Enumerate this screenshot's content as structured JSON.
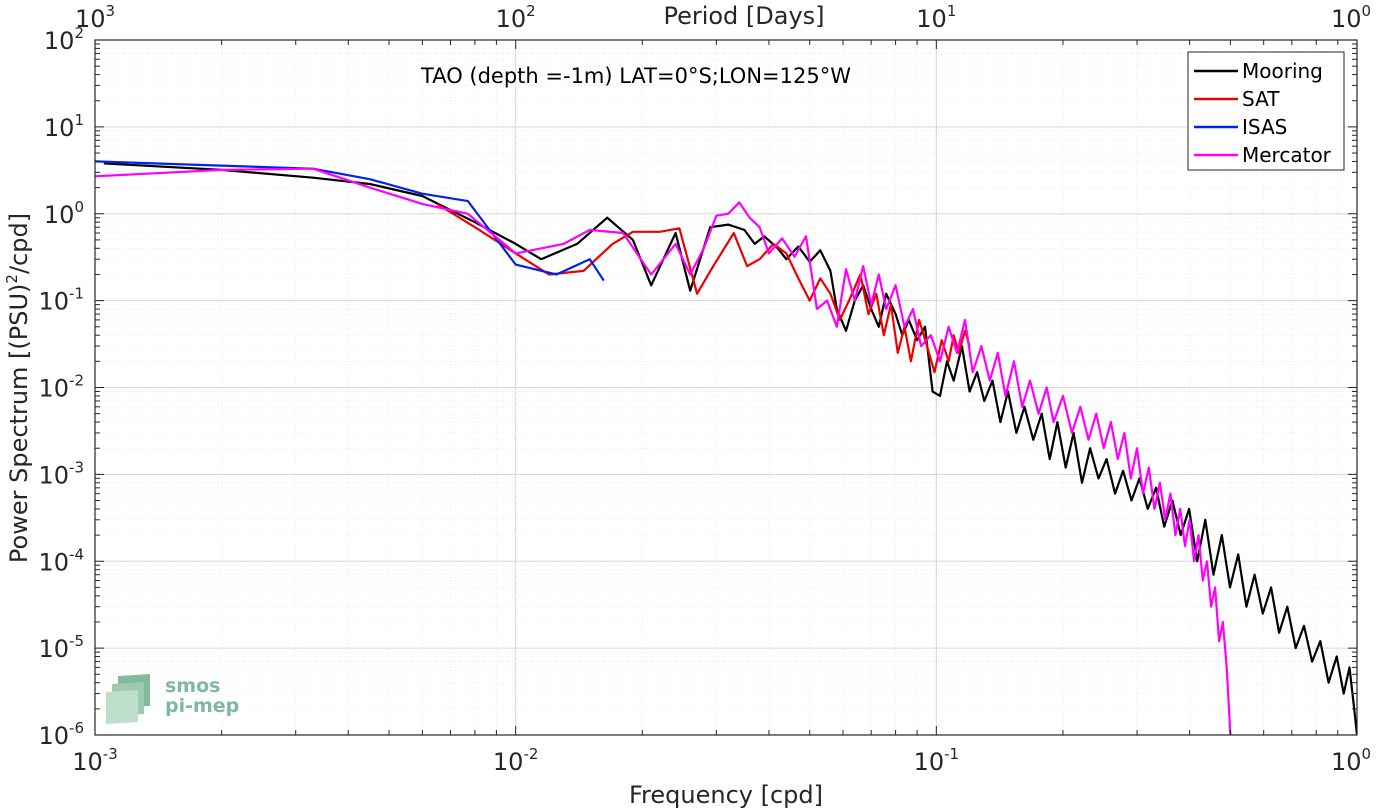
{
  "chart_data": {
    "type": "line",
    "title": "TAO (depth =-1m) LAT=0°S;LON=125°W",
    "xlabel": "Frequency [cpd]",
    "ylabel": "Power Spectrum [(PSU)²/cpd]",
    "ylabel_parts": {
      "main": "Power Spectrum [(PSU)",
      "sup": "2",
      "tail": "/cpd]"
    },
    "top_xlabel": "Period [Days]",
    "xscale": "log",
    "yscale": "log",
    "xlim": [
      0.001,
      1
    ],
    "ylim": [
      1e-06,
      100
    ],
    "grid": true,
    "legend_position": "top-right",
    "x_ticks": [
      {
        "value": 0.001,
        "base": "10",
        "exp": "-3"
      },
      {
        "value": 0.01,
        "base": "10",
        "exp": "-2"
      },
      {
        "value": 0.1,
        "base": "10",
        "exp": "-1"
      },
      {
        "value": 1,
        "base": "10",
        "exp": "0"
      }
    ],
    "top_ticks": [
      {
        "value": 0.001,
        "base": "10",
        "exp": "3"
      },
      {
        "value": 0.01,
        "base": "10",
        "exp": "2"
      },
      {
        "value": 0.1,
        "base": "10",
        "exp": "1"
      },
      {
        "value": 1,
        "base": "10",
        "exp": "0"
      }
    ],
    "y_ticks": [
      {
        "value": 100,
        "base": "10",
        "exp": "2"
      },
      {
        "value": 10,
        "base": "10",
        "exp": "1"
      },
      {
        "value": 1,
        "base": "10",
        "exp": "0"
      },
      {
        "value": 0.1,
        "base": "10",
        "exp": "-1"
      },
      {
        "value": 0.01,
        "base": "10",
        "exp": "-2"
      },
      {
        "value": 0.001,
        "base": "10",
        "exp": "-3"
      },
      {
        "value": 0.0001,
        "base": "10",
        "exp": "-4"
      },
      {
        "value": 1e-05,
        "base": "10",
        "exp": "-5"
      },
      {
        "value": 1e-06,
        "base": "10",
        "exp": "-6"
      }
    ],
    "series": [
      {
        "name": "Mooring",
        "color": "#000000",
        "points": [
          [
            0.00105,
            3.8
          ],
          [
            0.002,
            3.2
          ],
          [
            0.0033,
            2.6
          ],
          [
            0.0045,
            2.2
          ],
          [
            0.006,
            1.6
          ],
          [
            0.008,
            0.8
          ],
          [
            0.01,
            0.45
          ],
          [
            0.0115,
            0.3
          ],
          [
            0.014,
            0.45
          ],
          [
            0.0165,
            0.9
          ],
          [
            0.019,
            0.5
          ],
          [
            0.021,
            0.15
          ],
          [
            0.024,
            0.6
          ],
          [
            0.026,
            0.13
          ],
          [
            0.029,
            0.7
          ],
          [
            0.032,
            0.75
          ],
          [
            0.035,
            0.65
          ],
          [
            0.037,
            0.45
          ],
          [
            0.039,
            0.55
          ],
          [
            0.042,
            0.4
          ],
          [
            0.044,
            0.3
          ],
          [
            0.047,
            0.42
          ],
          [
            0.05,
            0.28
          ],
          [
            0.053,
            0.38
          ],
          [
            0.056,
            0.22
          ],
          [
            0.058,
            0.08
          ],
          [
            0.061,
            0.045
          ],
          [
            0.064,
            0.1
          ],
          [
            0.067,
            0.15
          ],
          [
            0.07,
            0.08
          ],
          [
            0.073,
            0.05
          ],
          [
            0.076,
            0.12
          ],
          [
            0.08,
            0.07
          ],
          [
            0.083,
            0.04
          ],
          [
            0.086,
            0.06
          ],
          [
            0.09,
            0.035
          ],
          [
            0.094,
            0.05
          ],
          [
            0.098,
            0.009
          ],
          [
            0.102,
            0.008
          ],
          [
            0.106,
            0.02
          ],
          [
            0.11,
            0.012
          ],
          [
            0.115,
            0.03
          ],
          [
            0.12,
            0.009
          ],
          [
            0.125,
            0.015
          ],
          [
            0.13,
            0.007
          ],
          [
            0.136,
            0.012
          ],
          [
            0.142,
            0.004
          ],
          [
            0.148,
            0.009
          ],
          [
            0.155,
            0.003
          ],
          [
            0.162,
            0.006
          ],
          [
            0.17,
            0.0025
          ],
          [
            0.178,
            0.005
          ],
          [
            0.186,
            0.0015
          ],
          [
            0.194,
            0.004
          ],
          [
            0.203,
            0.0012
          ],
          [
            0.212,
            0.003
          ],
          [
            0.222,
            0.0008
          ],
          [
            0.232,
            0.002
          ],
          [
            0.243,
            0.0009
          ],
          [
            0.254,
            0.0015
          ],
          [
            0.266,
            0.0006
          ],
          [
            0.278,
            0.0011
          ],
          [
            0.291,
            0.0005
          ],
          [
            0.304,
            0.0009
          ],
          [
            0.318,
            0.0004
          ],
          [
            0.333,
            0.0007
          ],
          [
            0.348,
            0.00025
          ],
          [
            0.364,
            0.0005
          ],
          [
            0.381,
            0.0002
          ],
          [
            0.399,
            0.0004
          ],
          [
            0.417,
            0.0001
          ],
          [
            0.436,
            0.0003
          ],
          [
            0.456,
            7e-05
          ],
          [
            0.477,
            0.0002
          ],
          [
            0.499,
            5e-05
          ],
          [
            0.522,
            0.00012
          ],
          [
            0.546,
            3e-05
          ],
          [
            0.571,
            7e-05
          ],
          [
            0.597,
            2.5e-05
          ],
          [
            0.625,
            5e-05
          ],
          [
            0.653,
            1.5e-05
          ],
          [
            0.683,
            3e-05
          ],
          [
            0.715,
            1e-05
          ],
          [
            0.748,
            1.8e-05
          ],
          [
            0.782,
            7e-06
          ],
          [
            0.818,
            1.2e-05
          ],
          [
            0.856,
            4e-06
          ],
          [
            0.895,
            8e-06
          ],
          [
            0.93,
            3e-06
          ],
          [
            0.96,
            6e-06
          ],
          [
            0.985,
            2e-06
          ],
          [
            1.0,
            1e-06
          ]
        ]
      },
      {
        "name": "SAT",
        "color": "#ee0000",
        "points": [
          [
            0.0065,
            1.3
          ],
          [
            0.008,
            0.7
          ],
          [
            0.01,
            0.35
          ],
          [
            0.012,
            0.2
          ],
          [
            0.0145,
            0.22
          ],
          [
            0.017,
            0.45
          ],
          [
            0.019,
            0.62
          ],
          [
            0.022,
            0.62
          ],
          [
            0.0245,
            0.68
          ],
          [
            0.027,
            0.12
          ],
          [
            0.0295,
            0.25
          ],
          [
            0.033,
            0.6
          ],
          [
            0.0355,
            0.25
          ],
          [
            0.038,
            0.3
          ],
          [
            0.041,
            0.45
          ],
          [
            0.044,
            0.35
          ],
          [
            0.047,
            0.18
          ],
          [
            0.05,
            0.1
          ],
          [
            0.053,
            0.18
          ],
          [
            0.056,
            0.12
          ],
          [
            0.059,
            0.06
          ],
          [
            0.062,
            0.1
          ],
          [
            0.066,
            0.2
          ],
          [
            0.069,
            0.07
          ],
          [
            0.072,
            0.12
          ],
          [
            0.075,
            0.04
          ],
          [
            0.078,
            0.09
          ],
          [
            0.081,
            0.025
          ],
          [
            0.084,
            0.05
          ],
          [
            0.087,
            0.02
          ],
          [
            0.091,
            0.06
          ],
          [
            0.095,
            0.03
          ],
          [
            0.099,
            0.015
          ],
          [
            0.103,
            0.035
          ],
          [
            0.107,
            0.02
          ],
          [
            0.11,
            0.04
          ],
          [
            0.113,
            0.025
          ],
          [
            0.117,
            0.045
          ],
          [
            0.12,
            0.03
          ]
        ]
      },
      {
        "name": "ISAS",
        "color": "#0022ee",
        "points": [
          [
            0.001,
            4.0
          ],
          [
            0.0033,
            3.3
          ],
          [
            0.0045,
            2.5
          ],
          [
            0.006,
            1.7
          ],
          [
            0.0077,
            1.4
          ],
          [
            0.01,
            0.26
          ],
          [
            0.0125,
            0.2
          ],
          [
            0.015,
            0.3
          ],
          [
            0.0162,
            0.17
          ]
        ]
      },
      {
        "name": "Mercator",
        "color": "#ff00ff",
        "points": [
          [
            0.001,
            2.7
          ],
          [
            0.002,
            3.2
          ],
          [
            0.0033,
            3.3
          ],
          [
            0.0045,
            2.0
          ],
          [
            0.006,
            1.3
          ],
          [
            0.0077,
            1.0
          ],
          [
            0.01,
            0.35
          ],
          [
            0.013,
            0.45
          ],
          [
            0.015,
            0.65
          ],
          [
            0.018,
            0.6
          ],
          [
            0.021,
            0.2
          ],
          [
            0.024,
            0.45
          ],
          [
            0.026,
            0.2
          ],
          [
            0.028,
            0.4
          ],
          [
            0.03,
            0.95
          ],
          [
            0.032,
            1.0
          ],
          [
            0.034,
            1.35
          ],
          [
            0.036,
            0.9
          ],
          [
            0.038,
            0.7
          ],
          [
            0.04,
            0.35
          ],
          [
            0.043,
            0.52
          ],
          [
            0.046,
            0.32
          ],
          [
            0.049,
            0.55
          ],
          [
            0.052,
            0.08
          ],
          [
            0.055,
            0.1
          ],
          [
            0.058,
            0.05
          ],
          [
            0.061,
            0.23
          ],
          [
            0.064,
            0.1
          ],
          [
            0.067,
            0.25
          ],
          [
            0.07,
            0.09
          ],
          [
            0.073,
            0.2
          ],
          [
            0.076,
            0.08
          ],
          [
            0.08,
            0.15
          ],
          [
            0.084,
            0.05
          ],
          [
            0.088,
            0.08
          ],
          [
            0.092,
            0.03
          ],
          [
            0.097,
            0.04
          ],
          [
            0.102,
            0.02
          ],
          [
            0.107,
            0.05
          ],
          [
            0.112,
            0.025
          ],
          [
            0.117,
            0.06
          ],
          [
            0.122,
            0.015
          ],
          [
            0.128,
            0.03
          ],
          [
            0.134,
            0.012
          ],
          [
            0.14,
            0.025
          ],
          [
            0.146,
            0.008
          ],
          [
            0.153,
            0.02
          ],
          [
            0.16,
            0.006
          ],
          [
            0.167,
            0.012
          ],
          [
            0.175,
            0.005
          ],
          [
            0.183,
            0.01
          ],
          [
            0.19,
            0.004
          ],
          [
            0.2,
            0.008
          ],
          [
            0.21,
            0.003
          ],
          [
            0.22,
            0.006
          ],
          [
            0.23,
            0.0025
          ],
          [
            0.24,
            0.005
          ],
          [
            0.25,
            0.002
          ],
          [
            0.26,
            0.004
          ],
          [
            0.27,
            0.0015
          ],
          [
            0.28,
            0.003
          ],
          [
            0.29,
            0.0009
          ],
          [
            0.3,
            0.002
          ],
          [
            0.31,
            0.0006
          ],
          [
            0.32,
            0.0012
          ],
          [
            0.33,
            0.0004
          ],
          [
            0.34,
            0.0008
          ],
          [
            0.35,
            0.0003
          ],
          [
            0.36,
            0.0006
          ],
          [
            0.37,
            0.0002
          ],
          [
            0.38,
            0.0004
          ],
          [
            0.39,
            0.00015
          ],
          [
            0.4,
            0.0003
          ],
          [
            0.41,
            0.0001
          ],
          [
            0.42,
            0.0002
          ],
          [
            0.43,
            6e-05
          ],
          [
            0.44,
            0.0001
          ],
          [
            0.45,
            3e-05
          ],
          [
            0.46,
            5e-05
          ],
          [
            0.47,
            1.2e-05
          ],
          [
            0.48,
            2e-05
          ],
          [
            0.49,
            6e-06
          ],
          [
            0.5,
            1e-06
          ]
        ]
      }
    ]
  },
  "logo": {
    "line1": "smos",
    "line2": "pi-mep"
  }
}
